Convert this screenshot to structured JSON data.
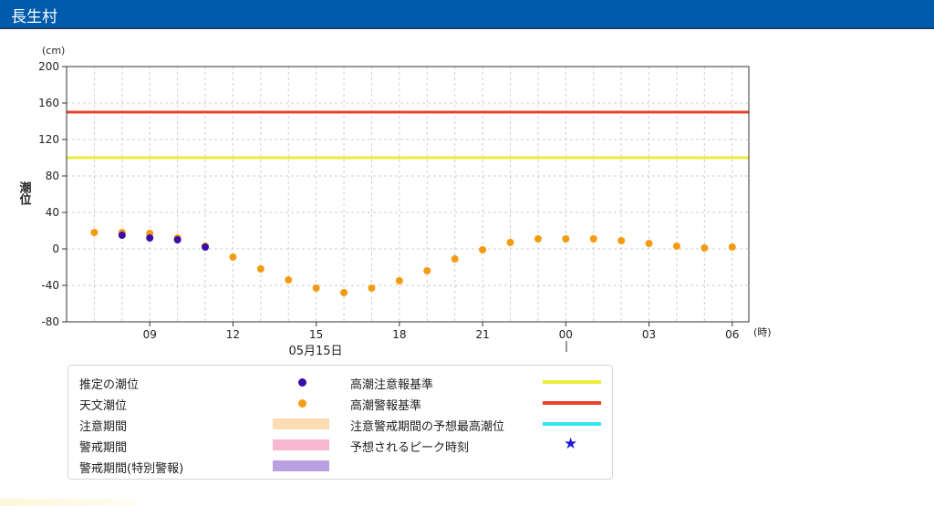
{
  "header": {
    "title": "長生村"
  },
  "chart_data": {
    "type": "scatter",
    "y_unit": "(cm)",
    "ylabel": "潮位",
    "ylim": [
      -80,
      200
    ],
    "yticks": [
      200,
      160,
      120,
      80,
      40,
      0,
      -40,
      -80
    ],
    "x_unit": "(時)",
    "x_range_hours": [
      6,
      30.6
    ],
    "xticks": [
      {
        "h": 9,
        "label": "09"
      },
      {
        "h": 12,
        "label": "12"
      },
      {
        "h": 15,
        "label": "15"
      },
      {
        "h": 18,
        "label": "18"
      },
      {
        "h": 21,
        "label": "21"
      },
      {
        "h": 24,
        "label": "00"
      },
      {
        "h": 27,
        "label": "03"
      },
      {
        "h": 30,
        "label": "06"
      }
    ],
    "date_label": "05月15日",
    "grid": true,
    "thresholds": [
      {
        "name": "高潮注意報基準",
        "value": 100,
        "color": "#ecec3c"
      },
      {
        "name": "高潮警報基準",
        "value": 150,
        "color": "#e8432a"
      }
    ],
    "series": [
      {
        "name": "推定の潮位",
        "color": "#3a0ca8",
        "points": [
          [
            8,
            15
          ],
          [
            9,
            12
          ],
          [
            10,
            10
          ],
          [
            11,
            2
          ]
        ]
      },
      {
        "name": "天文潮位",
        "color": "#f39c12",
        "points": [
          [
            7,
            18
          ],
          [
            8,
            18
          ],
          [
            9,
            17
          ],
          [
            10,
            12
          ],
          [
            11,
            3
          ],
          [
            12,
            -9
          ],
          [
            13,
            -22
          ],
          [
            14,
            -34
          ],
          [
            15,
            -43
          ],
          [
            16,
            -48
          ],
          [
            17,
            -43
          ],
          [
            18,
            -35
          ],
          [
            19,
            -24
          ],
          [
            20,
            -11
          ],
          [
            21,
            -1
          ],
          [
            22,
            7
          ],
          [
            23,
            11
          ],
          [
            24,
            11
          ],
          [
            25,
            11
          ],
          [
            26,
            9
          ],
          [
            27,
            6
          ],
          [
            28,
            3
          ],
          [
            29,
            1
          ],
          [
            30,
            2
          ]
        ]
      }
    ]
  },
  "legend": {
    "items": [
      {
        "label": "推定の潮位",
        "kind": "dot",
        "color": "#3a0ca8"
      },
      {
        "label": "天文潮位",
        "kind": "dot",
        "color": "#f39c12"
      },
      {
        "label": "注意期間",
        "kind": "box",
        "color": "#fbdcb3"
      },
      {
        "label": "警戒期間",
        "kind": "box",
        "color": "#f8b8d0"
      },
      {
        "label": "警戒期間(特別警報)",
        "kind": "box",
        "color": "#b9a0e0"
      },
      {
        "label": "高潮注意報基準",
        "kind": "line",
        "color": "#ecec3c"
      },
      {
        "label": "高潮警報基準",
        "kind": "line",
        "color": "#e8432a"
      },
      {
        "label": "注意警戒期間の予想最高潮位",
        "kind": "line",
        "color": "#33e6ee"
      },
      {
        "label": "予想されるピーク時刻",
        "kind": "star",
        "color": "#1a1ad8"
      }
    ]
  }
}
